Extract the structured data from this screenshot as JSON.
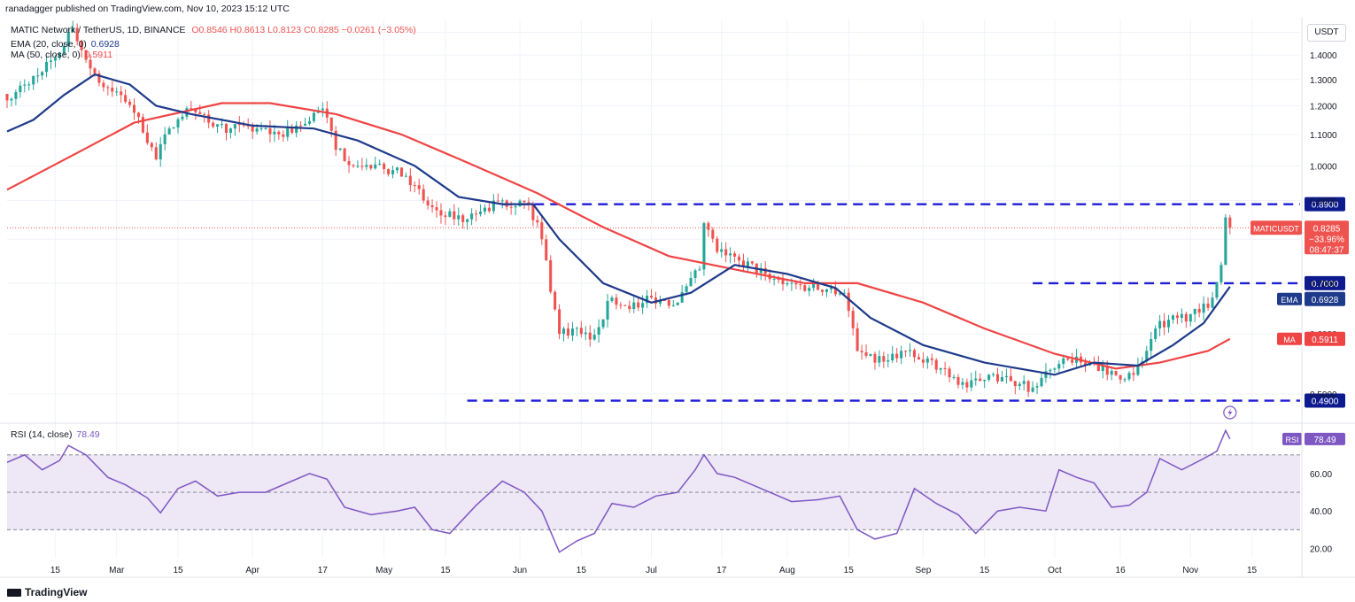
{
  "header": {
    "published": "ranadagger published on TradingView.com, Nov 10, 2023 15:12 UTC"
  },
  "legend": {
    "symbol": "MATIC Network / TetherUS, 1D, BINANCE",
    "ohlc": "O0.8546 H0.8613 L0.8123 C0.8285 −0.0261 (−3.05%)",
    "ema_label": "EMA (20, close, 0)",
    "ema_value": "0.6928",
    "ma_label": "MA (50, close, 0)",
    "ma_value": "0.5911",
    "rsi_label": "RSI (14, close)",
    "rsi_value": "78.49"
  },
  "currency_label": "USDT",
  "footer": {
    "brand": "TradingView"
  },
  "colors": {
    "up": "#26a69a",
    "down": "#ef5350",
    "ema": "#1e3a8a",
    "ma": "#ef4444",
    "level_line": "#1d1dd6",
    "rsi": "#7e57c2",
    "rsi_band": "#ede7f6",
    "axis_text": "#131722"
  },
  "chart_data": [
    {
      "type": "candlestick",
      "title": "MATIC Network / TetherUS, 1D, BINANCE",
      "y_axis": {
        "ticks": [
          "1.5000",
          "1.4000",
          "1.3000",
          "1.2000",
          "1.1000",
          "1.0000",
          "0.9000",
          "0.8000",
          "0.7000",
          "0.6000",
          "0.5000"
        ],
        "scale": "log",
        "range": [
          0.46,
          1.56
        ]
      },
      "x_axis": {
        "ticks": [
          "15",
          "Mar",
          "15",
          "Apr",
          "17",
          "May",
          "15",
          "Jun",
          "15",
          "Jul",
          "17",
          "Aug",
          "15",
          "Sep",
          "15",
          "Oct",
          "16",
          "Nov",
          "15"
        ],
        "start": "2023-02-04",
        "end": "2023-11-26"
      },
      "horizontal_levels": [
        {
          "label": "0.8900",
          "value": 0.89,
          "from": "2023-05-28"
        },
        {
          "label": "0.7000",
          "value": 0.7,
          "from": "2023-09-26"
        },
        {
          "label": "0.4900",
          "value": 0.49,
          "from": "2023-05-20"
        }
      ],
      "price_tags": [
        {
          "label": "MATICUSDT",
          "value": 0.8285,
          "lines": [
            "0.8285",
            "−33.96%",
            "08:47:37"
          ]
        },
        {
          "label": "EMA",
          "value": 0.6928,
          "text": "0.6928"
        },
        {
          "label": "MA",
          "value": 0.5911,
          "text": "0.5911"
        }
      ],
      "close_anchors": [
        [
          "2023-02-04",
          1.22
        ],
        [
          "2023-02-08",
          1.28
        ],
        [
          "2023-02-12",
          1.33
        ],
        [
          "2023-02-17",
          1.44
        ],
        [
          "2023-02-19",
          1.52
        ],
        [
          "2023-02-22",
          1.38
        ],
        [
          "2023-02-26",
          1.27
        ],
        [
          "2023-03-02",
          1.24
        ],
        [
          "2023-03-06",
          1.16
        ],
        [
          "2023-03-10",
          1.02
        ],
        [
          "2023-03-13",
          1.12
        ],
        [
          "2023-03-18",
          1.19
        ],
        [
          "2023-03-22",
          1.14
        ],
        [
          "2023-03-27",
          1.12
        ],
        [
          "2023-04-02",
          1.12
        ],
        [
          "2023-04-07",
          1.1
        ],
        [
          "2023-04-12",
          1.13
        ],
        [
          "2023-04-17",
          1.19
        ],
        [
          "2023-04-20",
          1.05
        ],
        [
          "2023-04-25",
          1.0
        ],
        [
          "2023-05-01",
          0.99
        ],
        [
          "2023-05-06",
          0.97
        ],
        [
          "2023-05-10",
          0.9
        ],
        [
          "2023-05-14",
          0.86
        ],
        [
          "2023-05-20",
          0.85
        ],
        [
          "2023-05-28",
          0.9
        ],
        [
          "2023-06-03",
          0.89
        ],
        [
          "2023-06-06",
          0.8
        ],
        [
          "2023-06-10",
          0.6
        ],
        [
          "2023-06-13",
          0.61
        ],
        [
          "2023-06-17",
          0.59
        ],
        [
          "2023-06-22",
          0.67
        ],
        [
          "2023-06-28",
          0.65
        ],
        [
          "2023-07-01",
          0.67
        ],
        [
          "2023-07-07",
          0.66
        ],
        [
          "2023-07-12",
          0.73
        ],
        [
          "2023-07-13",
          0.84
        ],
        [
          "2023-07-16",
          0.77
        ],
        [
          "2023-07-21",
          0.75
        ],
        [
          "2023-07-27",
          0.72
        ],
        [
          "2023-08-01",
          0.7
        ],
        [
          "2023-08-06",
          0.69
        ],
        [
          "2023-08-11",
          0.69
        ],
        [
          "2023-08-14",
          0.68
        ],
        [
          "2023-08-17",
          0.57
        ],
        [
          "2023-08-21",
          0.55
        ],
        [
          "2023-08-27",
          0.57
        ],
        [
          "2023-09-01",
          0.55
        ],
        [
          "2023-09-06",
          0.54
        ],
        [
          "2023-09-11",
          0.51
        ],
        [
          "2023-09-16",
          0.53
        ],
        [
          "2023-09-21",
          0.52
        ],
        [
          "2023-09-26",
          0.51
        ],
        [
          "2023-10-01",
          0.54
        ],
        [
          "2023-10-06",
          0.56
        ],
        [
          "2023-10-10",
          0.55
        ],
        [
          "2023-10-13",
          0.53
        ],
        [
          "2023-10-19",
          0.53
        ],
        [
          "2023-10-22",
          0.57
        ],
        [
          "2023-10-24",
          0.61
        ],
        [
          "2023-10-29",
          0.63
        ],
        [
          "2023-11-03",
          0.64
        ],
        [
          "2023-11-06",
          0.67
        ],
        [
          "2023-11-08",
          0.74
        ],
        [
          "2023-11-09",
          0.855
        ],
        [
          "2023-11-10",
          0.8285
        ]
      ],
      "ema20": [
        [
          "2023-02-04",
          1.11
        ],
        [
          "2023-02-10",
          1.15
        ],
        [
          "2023-02-17",
          1.24
        ],
        [
          "2023-02-24",
          1.32
        ],
        [
          "2023-03-04",
          1.28
        ],
        [
          "2023-03-10",
          1.2
        ],
        [
          "2023-03-18",
          1.17
        ],
        [
          "2023-04-01",
          1.13
        ],
        [
          "2023-04-15",
          1.12
        ],
        [
          "2023-04-25",
          1.08
        ],
        [
          "2023-05-08",
          1.0
        ],
        [
          "2023-05-18",
          0.91
        ],
        [
          "2023-05-28",
          0.89
        ],
        [
          "2023-06-04",
          0.89
        ],
        [
          "2023-06-10",
          0.8
        ],
        [
          "2023-06-20",
          0.7
        ],
        [
          "2023-07-01",
          0.66
        ],
        [
          "2023-07-10",
          0.68
        ],
        [
          "2023-07-20",
          0.74
        ],
        [
          "2023-08-01",
          0.72
        ],
        [
          "2023-08-12",
          0.69
        ],
        [
          "2023-08-20",
          0.63
        ],
        [
          "2023-09-01",
          0.58
        ],
        [
          "2023-09-15",
          0.55
        ],
        [
          "2023-10-01",
          0.53
        ],
        [
          "2023-10-10",
          0.55
        ],
        [
          "2023-10-20",
          0.545
        ],
        [
          "2023-10-28",
          0.58
        ],
        [
          "2023-11-04",
          0.62
        ],
        [
          "2023-11-10",
          0.6928
        ]
      ],
      "ma50": [
        [
          "2023-02-04",
          0.93
        ],
        [
          "2023-02-20",
          1.04
        ],
        [
          "2023-03-05",
          1.14
        ],
        [
          "2023-03-25",
          1.21
        ],
        [
          "2023-04-05",
          1.21
        ],
        [
          "2023-04-20",
          1.17
        ],
        [
          "2023-05-05",
          1.1
        ],
        [
          "2023-05-20",
          1.01
        ],
        [
          "2023-06-05",
          0.92
        ],
        [
          "2023-06-20",
          0.83
        ],
        [
          "2023-07-05",
          0.76
        ],
        [
          "2023-07-20",
          0.73
        ],
        [
          "2023-08-05",
          0.7
        ],
        [
          "2023-08-17",
          0.7
        ],
        [
          "2023-09-01",
          0.66
        ],
        [
          "2023-09-15",
          0.61
        ],
        [
          "2023-10-01",
          0.565
        ],
        [
          "2023-10-15",
          0.54
        ],
        [
          "2023-10-25",
          0.55
        ],
        [
          "2023-11-05",
          0.57
        ],
        [
          "2023-11-10",
          0.5911
        ]
      ]
    },
    {
      "type": "line",
      "title": "RSI (14, close)",
      "y_axis": {
        "ticks": [
          "60.00",
          "40.00",
          "20.00"
        ],
        "range": [
          15,
          86
        ]
      },
      "bands": [
        70,
        50,
        30
      ],
      "last_label": "78.49",
      "series": [
        {
          "name": "RSI",
          "values": [
            [
              "2023-02-04",
              66
            ],
            [
              "2023-02-08",
              70
            ],
            [
              "2023-02-12",
              62
            ],
            [
              "2023-02-16",
              67
            ],
            [
              "2023-02-18",
              75
            ],
            [
              "2023-02-22",
              70
            ],
            [
              "2023-02-27",
              58
            ],
            [
              "2023-03-03",
              54
            ],
            [
              "2023-03-08",
              47
            ],
            [
              "2023-03-11",
              39
            ],
            [
              "2023-03-15",
              52
            ],
            [
              "2023-03-19",
              56
            ],
            [
              "2023-03-24",
              48
            ],
            [
              "2023-03-29",
              50
            ],
            [
              "2023-04-04",
              50
            ],
            [
              "2023-04-09",
              55
            ],
            [
              "2023-04-14",
              60
            ],
            [
              "2023-04-18",
              57
            ],
            [
              "2023-04-22",
              42
            ],
            [
              "2023-04-28",
              38
            ],
            [
              "2023-05-04",
              40
            ],
            [
              "2023-05-08",
              42
            ],
            [
              "2023-05-12",
              30
            ],
            [
              "2023-05-16",
              28
            ],
            [
              "2023-05-22",
              43
            ],
            [
              "2023-05-28",
              56
            ],
            [
              "2023-06-02",
              50
            ],
            [
              "2023-06-06",
              40
            ],
            [
              "2023-06-10",
              18
            ],
            [
              "2023-06-14",
              24
            ],
            [
              "2023-06-18",
              28
            ],
            [
              "2023-06-22",
              44
            ],
            [
              "2023-06-27",
              42
            ],
            [
              "2023-07-02",
              48
            ],
            [
              "2023-07-07",
              50
            ],
            [
              "2023-07-11",
              62
            ],
            [
              "2023-07-13",
              70
            ],
            [
              "2023-07-16",
              60
            ],
            [
              "2023-07-20",
              58
            ],
            [
              "2023-07-26",
              52
            ],
            [
              "2023-08-02",
              45
            ],
            [
              "2023-08-08",
              46
            ],
            [
              "2023-08-13",
              48
            ],
            [
              "2023-08-17",
              30
            ],
            [
              "2023-08-21",
              25
            ],
            [
              "2023-08-26",
              28
            ],
            [
              "2023-08-30",
              52
            ],
            [
              "2023-09-04",
              44
            ],
            [
              "2023-09-09",
              38
            ],
            [
              "2023-09-13",
              28
            ],
            [
              "2023-09-18",
              40
            ],
            [
              "2023-09-23",
              42
            ],
            [
              "2023-09-29",
              40
            ],
            [
              "2023-10-02",
              62
            ],
            [
              "2023-10-06",
              58
            ],
            [
              "2023-10-10",
              55
            ],
            [
              "2023-10-14",
              42
            ],
            [
              "2023-10-18",
              43
            ],
            [
              "2023-10-22",
              50
            ],
            [
              "2023-10-25",
              68
            ],
            [
              "2023-10-30",
              62
            ],
            [
              "2023-11-04",
              68
            ],
            [
              "2023-11-07",
              72
            ],
            [
              "2023-11-09",
              83
            ],
            [
              "2023-11-10",
              78.49
            ]
          ]
        }
      ]
    }
  ]
}
